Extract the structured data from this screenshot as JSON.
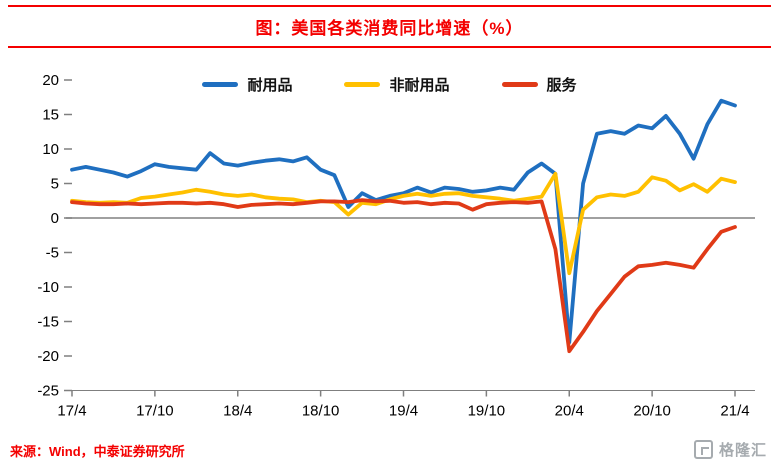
{
  "title": "图：美国各类消费同比增速（%）",
  "source": "来源：Wind，中泰证券研究所",
  "watermark": {
    "brand": "格隆汇"
  },
  "colors": {
    "accent_red": "#f40000",
    "axis": "#7f7f7f",
    "zero_line": "#808080",
    "tick_text": "#000000"
  },
  "chart_data": {
    "type": "line",
    "title": "美国各类消费同比增速（%）",
    "xlabel": "",
    "ylabel": "",
    "ylim": [
      -25,
      20
    ],
    "grid": false,
    "legend_position": "top-center",
    "y_ticks": [
      20,
      15,
      10,
      5,
      0,
      -5,
      -10,
      -15,
      -20,
      -25
    ],
    "x_tick_labels": [
      "17/4",
      "17/10",
      "18/4",
      "18/10",
      "19/4",
      "19/10",
      "20/4",
      "20/10",
      "21/4"
    ],
    "x_tick_indices": [
      0,
      6,
      12,
      18,
      24,
      30,
      36,
      42,
      48
    ],
    "x_frequency": "monthly",
    "series": [
      {
        "name": "耐用品",
        "color": "#1f6fc0",
        "values": [
          7.0,
          7.4,
          7.0,
          6.6,
          6.0,
          6.8,
          7.8,
          7.4,
          7.2,
          7.0,
          9.4,
          7.9,
          7.6,
          8.0,
          8.3,
          8.5,
          8.2,
          8.8,
          7.0,
          6.2,
          1.6,
          3.6,
          2.6,
          3.2,
          3.6,
          4.4,
          3.7,
          4.4,
          4.2,
          3.8,
          4.0,
          4.4,
          4.1,
          6.6,
          7.9,
          6.4,
          -18.0,
          5.0,
          12.2,
          12.6,
          12.2,
          13.4,
          13.0,
          14.8,
          12.2,
          8.6,
          13.6,
          17.0,
          16.3
        ]
      },
      {
        "name": "非耐用品",
        "color": "#ffc000",
        "values": [
          2.5,
          2.3,
          2.2,
          2.3,
          2.2,
          2.9,
          3.1,
          3.4,
          3.7,
          4.1,
          3.8,
          3.4,
          3.2,
          3.4,
          3.0,
          2.8,
          2.7,
          2.3,
          2.5,
          2.3,
          0.5,
          2.2,
          2.0,
          2.7,
          3.2,
          3.5,
          3.2,
          3.5,
          3.6,
          3.2,
          3.0,
          2.8,
          2.5,
          2.8,
          3.1,
          6.4,
          -8.0,
          1.2,
          3.0,
          3.4,
          3.2,
          3.8,
          5.9,
          5.4,
          4.0,
          4.9,
          3.8,
          5.7,
          5.2
        ]
      },
      {
        "name": "服务",
        "color": "#e03a17",
        "values": [
          2.3,
          2.1,
          2.0,
          2.0,
          2.1,
          2.0,
          2.1,
          2.2,
          2.2,
          2.1,
          2.2,
          2.0,
          1.6,
          1.9,
          2.0,
          2.1,
          2.0,
          2.2,
          2.4,
          2.4,
          2.3,
          2.6,
          2.4,
          2.5,
          2.2,
          2.3,
          2.0,
          2.2,
          2.1,
          1.2,
          2.0,
          2.2,
          2.3,
          2.2,
          2.4,
          -4.5,
          -19.3,
          -16.5,
          -13.5,
          -11.0,
          -8.5,
          -7.0,
          -6.8,
          -6.5,
          -6.8,
          -7.2,
          -4.5,
          -2.0,
          -1.3
        ]
      }
    ]
  }
}
